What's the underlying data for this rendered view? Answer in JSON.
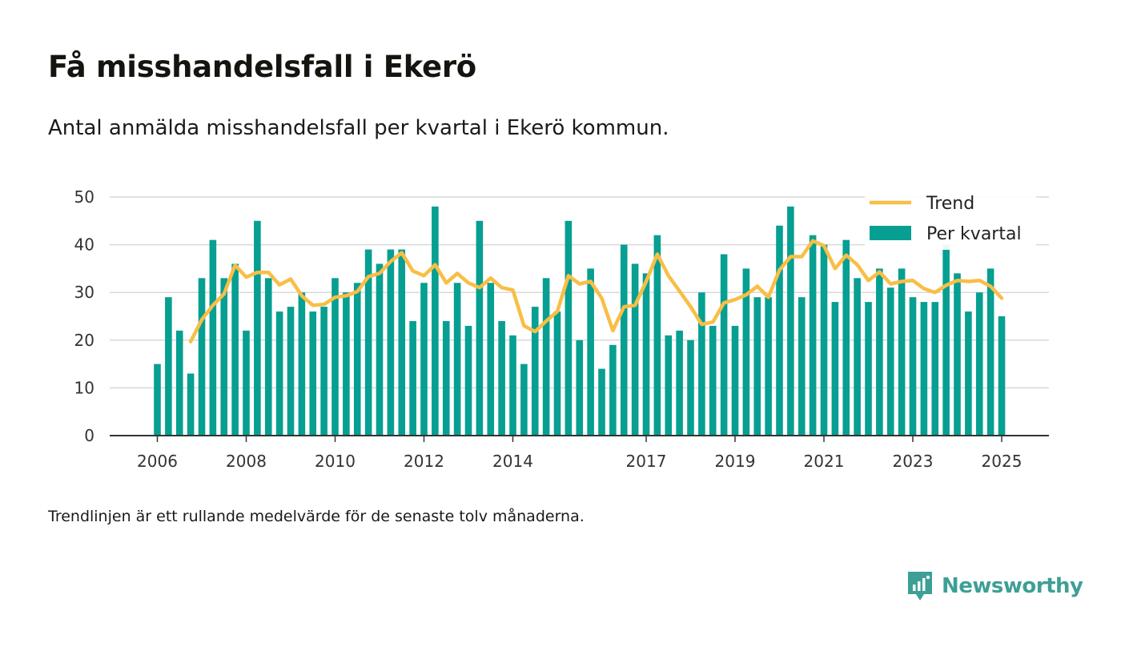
{
  "title": "Få misshandelsfall i Ekerö",
  "subtitle": "Antal anmälda misshandelsfall per kvartal i Ekerö kommun.",
  "note": "Trendlinjen är ett rullande medelvärde för de senaste tolv månaderna.",
  "brand": {
    "name": "Newsworthy",
    "icon": "newsworthy-logo-icon"
  },
  "colors": {
    "bar": "#069f92",
    "trend": "#f8be46",
    "grid": "#d9d9d9",
    "axis": "#333333"
  },
  "chart_data": {
    "type": "bar",
    "title": "Få misshandelsfall i Ekerö",
    "ylim": [
      0,
      50
    ],
    "yticks": [
      0,
      10,
      20,
      30,
      40,
      50
    ],
    "xticks": [
      "2006",
      "2008",
      "2010",
      "2012",
      "2014",
      "2017",
      "2019",
      "2021",
      "2023",
      "2025"
    ],
    "grid": true,
    "legend_placement": "top-right",
    "series": [
      {
        "name": "Per kvartal",
        "type": "bar",
        "x": [
          "2006-Q1",
          "2006-Q2",
          "2006-Q3",
          "2006-Q4",
          "2007-Q1",
          "2007-Q2",
          "2007-Q3",
          "2007-Q4",
          "2008-Q1",
          "2008-Q2",
          "2008-Q3",
          "2008-Q4",
          "2009-Q1",
          "2009-Q2",
          "2009-Q3",
          "2009-Q4",
          "2010-Q1",
          "2010-Q2",
          "2010-Q3",
          "2010-Q4",
          "2011-Q1",
          "2011-Q2",
          "2011-Q3",
          "2011-Q4",
          "2012-Q1",
          "2012-Q2",
          "2012-Q3",
          "2012-Q4",
          "2013-Q1",
          "2013-Q2",
          "2013-Q3",
          "2013-Q4",
          "2014-Q1",
          "2014-Q2",
          "2014-Q3",
          "2014-Q4",
          "2015-Q1",
          "2015-Q2",
          "2015-Q3",
          "2015-Q4",
          "2016-Q1",
          "2016-Q2",
          "2016-Q3",
          "2016-Q4",
          "2017-Q1",
          "2017-Q2",
          "2017-Q3",
          "2017-Q4",
          "2018-Q1",
          "2018-Q2",
          "2018-Q3",
          "2018-Q4",
          "2019-Q1",
          "2019-Q2",
          "2019-Q3",
          "2019-Q4",
          "2020-Q1",
          "2020-Q2",
          "2020-Q3",
          "2020-Q4",
          "2021-Q1",
          "2021-Q2",
          "2021-Q3",
          "2021-Q4",
          "2022-Q1",
          "2022-Q2",
          "2022-Q3",
          "2022-Q4",
          "2023-Q1",
          "2023-Q2",
          "2023-Q3",
          "2023-Q4",
          "2024-Q1",
          "2024-Q2",
          "2024-Q3",
          "2024-Q4",
          "2025-Q1"
        ],
        "values": [
          15,
          29,
          22,
          13,
          33,
          41,
          33,
          36,
          22,
          45,
          33,
          26,
          27,
          30,
          26,
          27,
          33,
          30,
          32,
          39,
          36,
          39,
          39,
          24,
          32,
          48,
          24,
          32,
          23,
          45,
          32,
          24,
          21,
          15,
          27,
          33,
          26,
          45,
          20,
          35,
          14,
          19,
          40,
          36,
          34,
          42,
          21,
          22,
          20,
          30,
          23,
          38,
          23,
          35,
          29,
          29,
          44,
          48,
          29,
          42,
          40,
          28,
          41,
          33,
          28,
          35,
          31,
          35,
          29,
          28,
          28,
          40,
          34,
          26,
          30,
          35,
          25
        ]
      },
      {
        "name": "Trend",
        "type": "line",
        "x": [
          "2006-Q4",
          "2007-Q1",
          "2007-Q2",
          "2007-Q3",
          "2007-Q4",
          "2008-Q1",
          "2008-Q2",
          "2008-Q3",
          "2008-Q4",
          "2009-Q1",
          "2009-Q2",
          "2009-Q3",
          "2009-Q4",
          "2010-Q1",
          "2010-Q2",
          "2010-Q3",
          "2010-Q4",
          "2011-Q1",
          "2011-Q2",
          "2011-Q3",
          "2011-Q4",
          "2012-Q1",
          "2012-Q2",
          "2012-Q3",
          "2012-Q4",
          "2013-Q1",
          "2013-Q2",
          "2013-Q3",
          "2013-Q4",
          "2014-Q1",
          "2014-Q2",
          "2014-Q3",
          "2014-Q4",
          "2015-Q1",
          "2015-Q2",
          "2015-Q3",
          "2015-Q4",
          "2016-Q1",
          "2016-Q2",
          "2016-Q3",
          "2016-Q4",
          "2017-Q1",
          "2017-Q2",
          "2017-Q3",
          "2017-Q4",
          "2018-Q1",
          "2018-Q2",
          "2018-Q3",
          "2018-Q4",
          "2019-Q1",
          "2019-Q2",
          "2019-Q3",
          "2019-Q4",
          "2020-Q1",
          "2020-Q2",
          "2020-Q3",
          "2020-Q4",
          "2021-Q1",
          "2021-Q2",
          "2021-Q3",
          "2021-Q4",
          "2022-Q1",
          "2022-Q2",
          "2022-Q3",
          "2022-Q4",
          "2023-Q1",
          "2023-Q2",
          "2023-Q3",
          "2023-Q4",
          "2024-Q1",
          "2024-Q2",
          "2024-Q3",
          "2024-Q4",
          "2025-Q1"
        ],
        "values": [
          19.7,
          24.3,
          27.3,
          29.7,
          35.7,
          33.2,
          34.2,
          34.2,
          31.6,
          32.8,
          29.3,
          27.3,
          27.5,
          29.0,
          29.3,
          30.2,
          33.3,
          34.0,
          36.5,
          38.3,
          34.5,
          33.5,
          35.8,
          32.0,
          34.0,
          32.0,
          31.0,
          33.0,
          31.0,
          30.5,
          23.0,
          21.8,
          24.0,
          26.0,
          33.5,
          31.8,
          32.3,
          28.8,
          22.0,
          27.0,
          27.3,
          32.3,
          38.0,
          33.5,
          30.3,
          27.0,
          23.3,
          23.8,
          27.8,
          28.5,
          29.5,
          31.3,
          29.0,
          34.7,
          37.5,
          37.5,
          40.8,
          39.8,
          35.0,
          37.8,
          35.8,
          32.5,
          34.3,
          31.8,
          32.3,
          32.5,
          30.8,
          30.0,
          31.5,
          32.5,
          32.3,
          32.5,
          31.3,
          28.8
        ]
      }
    ]
  }
}
